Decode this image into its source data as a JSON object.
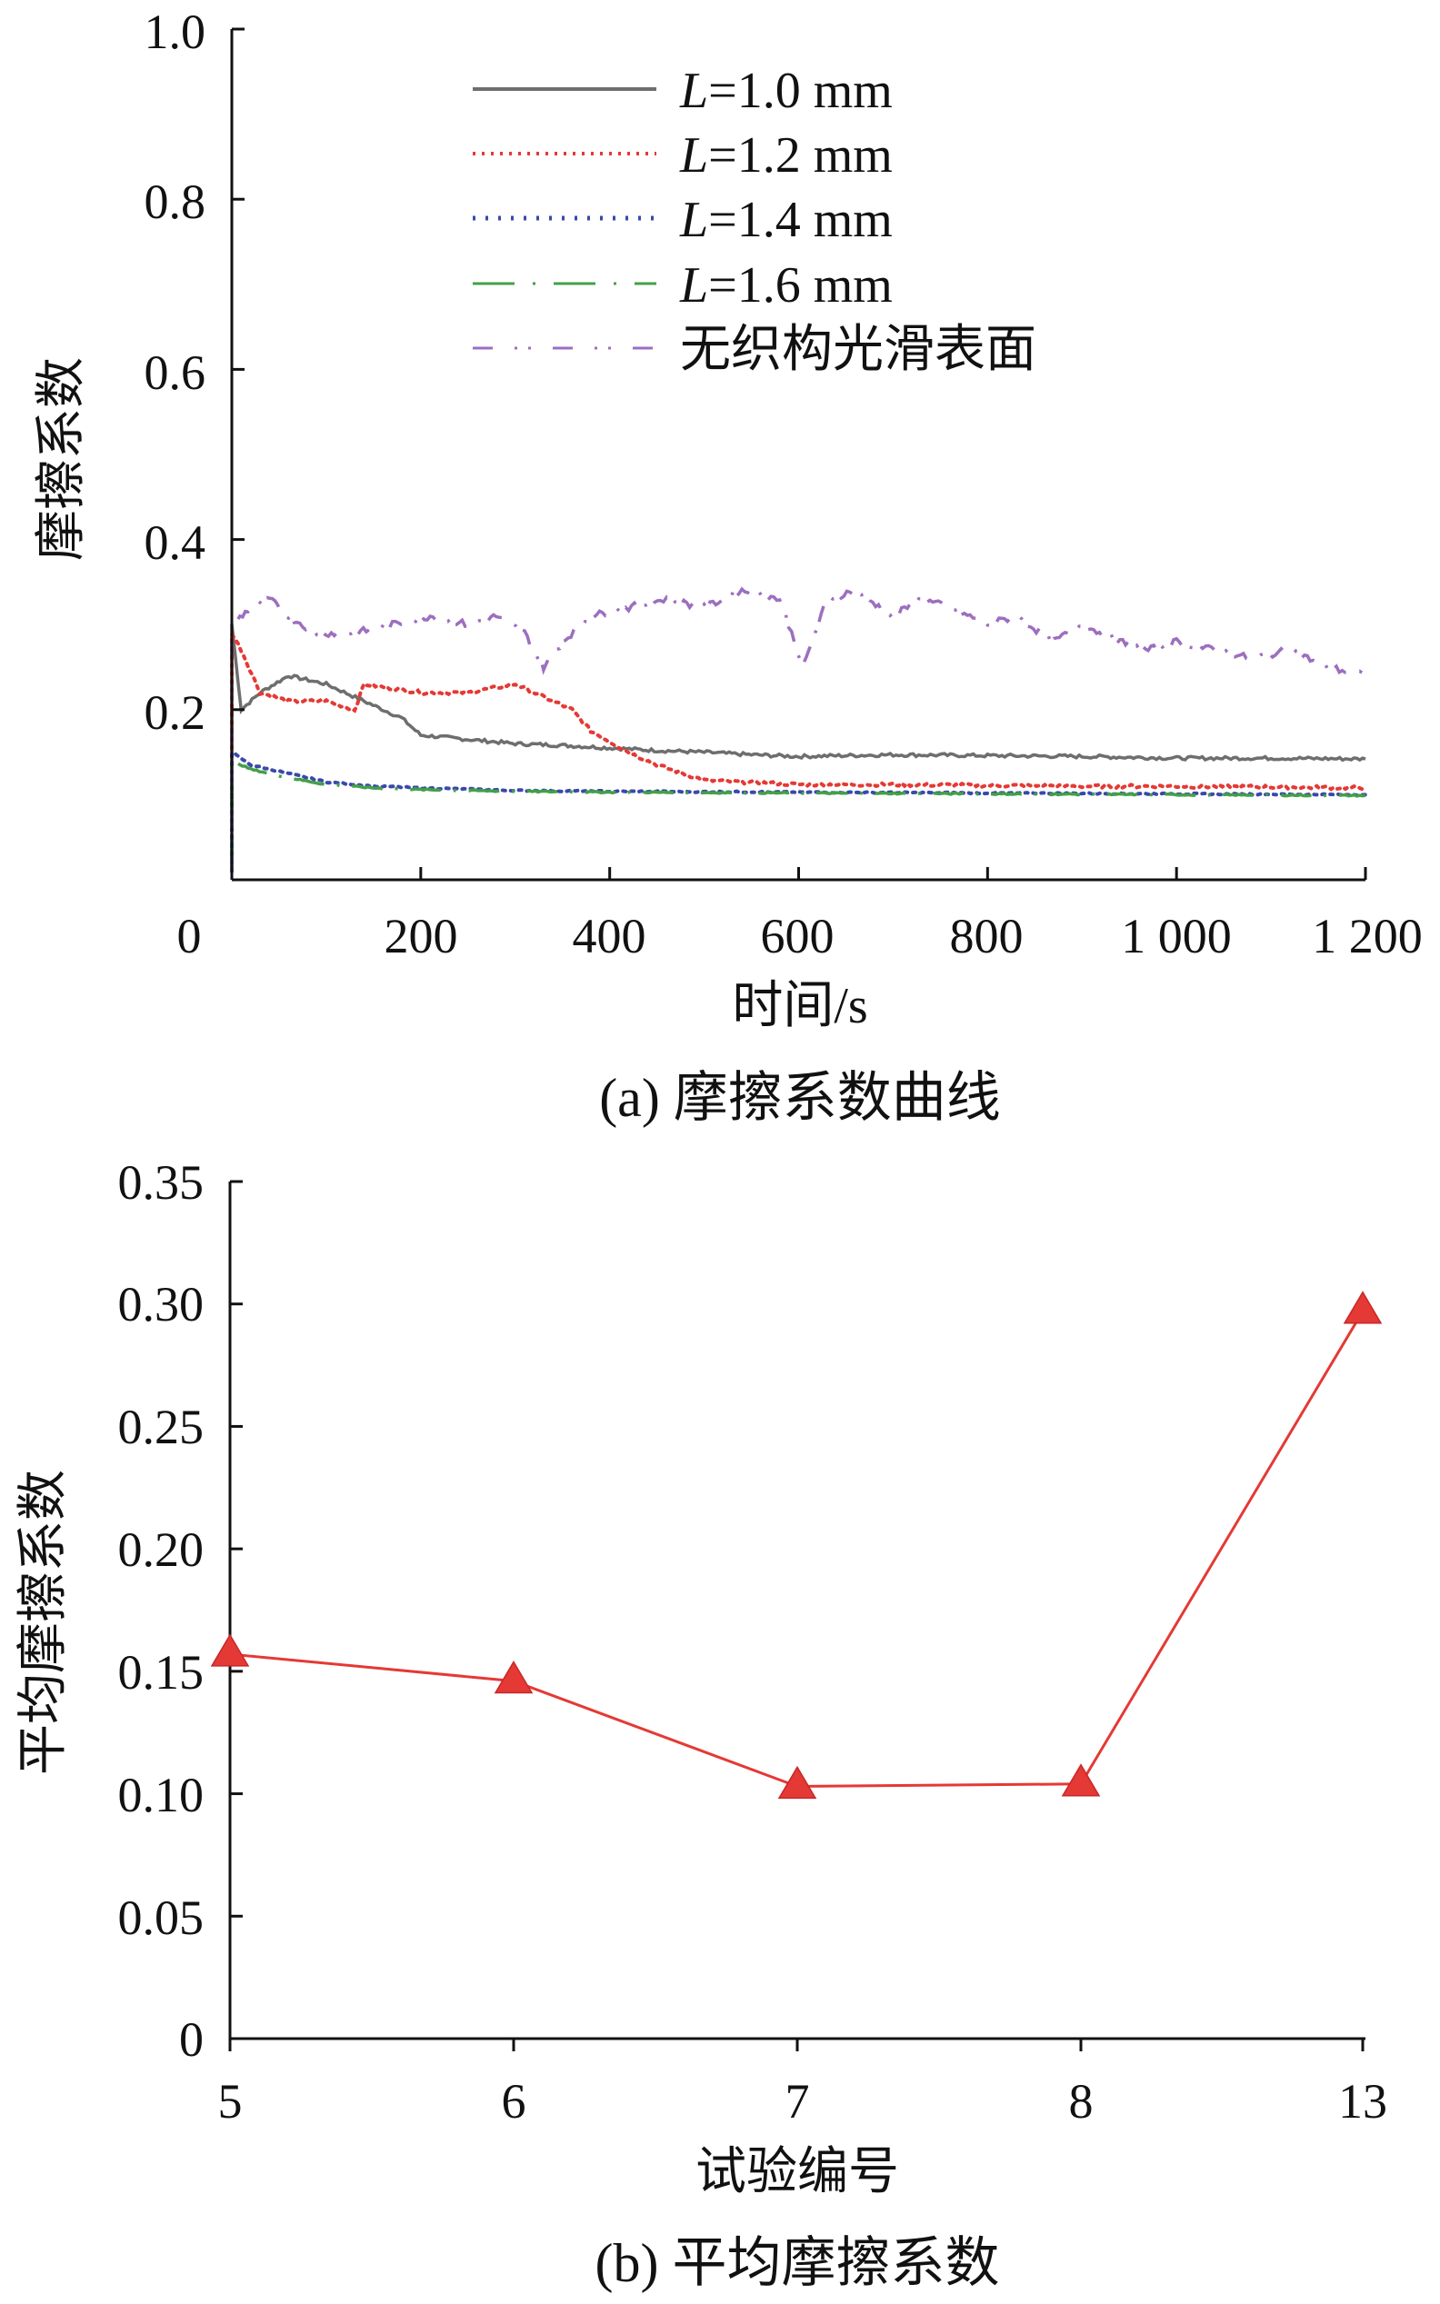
{
  "figure_a": {
    "caption": "(a)  摩擦系数曲线",
    "xlabel": "时间/s",
    "ylabel": "摩擦系数",
    "x_ticks": [
      "0",
      "200",
      "400",
      "600",
      "800",
      "1 000",
      "1 200"
    ],
    "y_ticks": [
      "0.2",
      "0.4",
      "0.6",
      "0.8",
      "1.0"
    ],
    "legend": [
      {
        "prefix": "L",
        "suffix": "=1.0 mm"
      },
      {
        "prefix": "L",
        "suffix": "=1.2 mm"
      },
      {
        "prefix": "L",
        "suffix": "=1.4 mm"
      },
      {
        "prefix": "L",
        "suffix": "=1.6 mm"
      },
      {
        "prefix": "",
        "suffix": "无织构光滑表面"
      }
    ]
  },
  "figure_b": {
    "caption": "(b)  平均摩擦系数",
    "xlabel": "试验编号",
    "ylabel": "平均摩擦系数",
    "x_ticks": [
      "5",
      "6",
      "7",
      "8",
      "13"
    ],
    "y_ticks": [
      "0",
      "0.05",
      "0.10",
      "0.15",
      "0.20",
      "0.25",
      "0.30",
      "0.35"
    ]
  },
  "chart_data": [
    {
      "type": "line",
      "title": "",
      "xlabel": "时间/s",
      "ylabel": "摩擦系数",
      "xlim": [
        0,
        1200
      ],
      "ylim": [
        0,
        1.0
      ],
      "grid": false,
      "legend_position": "top-center",
      "series": [
        {
          "name": "L=1.0 mm",
          "color": "#6e6e6e",
          "style": "solid",
          "points": [
            [
              0,
              0.3
            ],
            [
              10,
              0.2
            ],
            [
              30,
              0.22
            ],
            [
              60,
              0.24
            ],
            [
              100,
              0.23
            ],
            [
              140,
              0.21
            ],
            [
              180,
              0.19
            ],
            [
              200,
              0.17
            ],
            [
              250,
              0.165
            ],
            [
              300,
              0.16
            ],
            [
              350,
              0.158
            ],
            [
              400,
              0.155
            ],
            [
              450,
              0.152
            ],
            [
              500,
              0.15
            ],
            [
              550,
              0.147
            ],
            [
              600,
              0.145
            ],
            [
              700,
              0.147
            ],
            [
              800,
              0.146
            ],
            [
              900,
              0.145
            ],
            [
              1000,
              0.143
            ],
            [
              1100,
              0.143
            ],
            [
              1200,
              0.142
            ]
          ]
        },
        {
          "name": "L=1.2 mm",
          "color": "#e53935",
          "style": "dotted",
          "points": [
            [
              0,
              0.29
            ],
            [
              10,
              0.27
            ],
            [
              30,
              0.22
            ],
            [
              60,
              0.21
            ],
            [
              100,
              0.21
            ],
            [
              130,
              0.2
            ],
            [
              140,
              0.23
            ],
            [
              200,
              0.22
            ],
            [
              250,
              0.22
            ],
            [
              300,
              0.23
            ],
            [
              340,
              0.21
            ],
            [
              360,
              0.2
            ],
            [
              380,
              0.175
            ],
            [
              420,
              0.15
            ],
            [
              450,
              0.135
            ],
            [
              500,
              0.117
            ],
            [
              600,
              0.112
            ],
            [
              700,
              0.112
            ],
            [
              800,
              0.111
            ],
            [
              900,
              0.11
            ],
            [
              1000,
              0.11
            ],
            [
              1100,
              0.109
            ],
            [
              1200,
              0.108
            ]
          ]
        },
        {
          "name": "L=1.4 mm",
          "color": "#3949ab",
          "style": "dotted",
          "points": [
            [
              0,
              0.15
            ],
            [
              20,
              0.135
            ],
            [
              60,
              0.125
            ],
            [
              100,
              0.115
            ],
            [
              150,
              0.11
            ],
            [
              200,
              0.108
            ],
            [
              300,
              0.105
            ],
            [
              400,
              0.104
            ],
            [
              600,
              0.103
            ],
            [
              800,
              0.102
            ],
            [
              1000,
              0.101
            ],
            [
              1200,
              0.1
            ]
          ]
        },
        {
          "name": "L=1.6 mm",
          "color": "#43a047",
          "style": "dashdot",
          "points": [
            [
              0,
              0.14
            ],
            [
              20,
              0.13
            ],
            [
              60,
              0.12
            ],
            [
              100,
              0.112
            ],
            [
              150,
              0.108
            ],
            [
              200,
              0.106
            ],
            [
              300,
              0.104
            ],
            [
              400,
              0.103
            ],
            [
              600,
              0.102
            ],
            [
              800,
              0.101
            ],
            [
              1000,
              0.1
            ],
            [
              1200,
              0.099
            ]
          ]
        },
        {
          "name": "无织构光滑表面",
          "color": "#9c6fbf",
          "style": "dashed",
          "points": [
            [
              0,
              0.3
            ],
            [
              20,
              0.32
            ],
            [
              40,
              0.33
            ],
            [
              60,
              0.31
            ],
            [
              90,
              0.29
            ],
            [
              130,
              0.29
            ],
            [
              170,
              0.3
            ],
            [
              210,
              0.31
            ],
            [
              250,
              0.3
            ],
            [
              280,
              0.31
            ],
            [
              310,
              0.29
            ],
            [
              330,
              0.25
            ],
            [
              350,
              0.28
            ],
            [
              380,
              0.31
            ],
            [
              420,
              0.32
            ],
            [
              460,
              0.33
            ],
            [
              500,
              0.32
            ],
            [
              540,
              0.34
            ],
            [
              580,
              0.33
            ],
            [
              605,
              0.25
            ],
            [
              630,
              0.33
            ],
            [
              660,
              0.34
            ],
            [
              700,
              0.31
            ],
            [
              730,
              0.33
            ],
            [
              760,
              0.32
            ],
            [
              800,
              0.3
            ],
            [
              830,
              0.31
            ],
            [
              870,
              0.28
            ],
            [
              900,
              0.3
            ],
            [
              940,
              0.28
            ],
            [
              970,
              0.27
            ],
            [
              1000,
              0.28
            ],
            [
              1040,
              0.27
            ],
            [
              1080,
              0.26
            ],
            [
              1120,
              0.27
            ],
            [
              1160,
              0.25
            ],
            [
              1200,
              0.24
            ]
          ]
        }
      ]
    },
    {
      "type": "line",
      "title": "",
      "xlabel": "试验编号",
      "ylabel": "平均摩擦系数",
      "categories": [
        "5",
        "6",
        "7",
        "8",
        "13"
      ],
      "ylim": [
        0,
        0.35
      ],
      "grid": false,
      "series": [
        {
          "color": "#e53935",
          "marker": "triangle",
          "values": [
            0.157,
            0.146,
            0.103,
            0.104,
            0.297
          ]
        }
      ]
    }
  ]
}
